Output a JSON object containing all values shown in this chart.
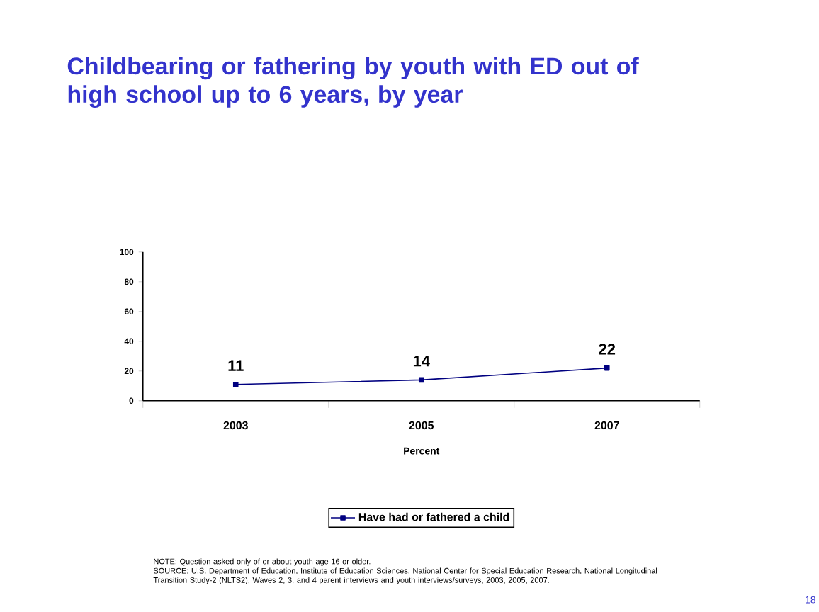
{
  "chart_data": {
    "type": "line",
    "title": "Childbearing or fathering by youth with ED out of high school up to 6 years, by year",
    "categories": [
      "2003",
      "2005",
      "2007"
    ],
    "series": [
      {
        "name": "Have had or fathered a child",
        "color": "#000080",
        "values": [
          11,
          14,
          22
        ]
      }
    ],
    "xlabel": "Percent",
    "ylim": [
      0,
      100
    ],
    "yticks": [
      0,
      20,
      40,
      60,
      80,
      100
    ],
    "data_labels": true,
    "legend": "bottom",
    "marker": "square",
    "line_style": "solid",
    "annotations": [
      "NOTE: Question asked only of or about youth age 16 or older.",
      "SOURCE: U.S. Department of Education, Institute of Education Sciences, National Center for Special Education Research, National Longitudinal Transition Study-2 (NLTS2), Waves 2, 3, and 4 parent interviews and youth interviews/surveys, 2003, 2005, 2007.",
      "18"
    ]
  }
}
